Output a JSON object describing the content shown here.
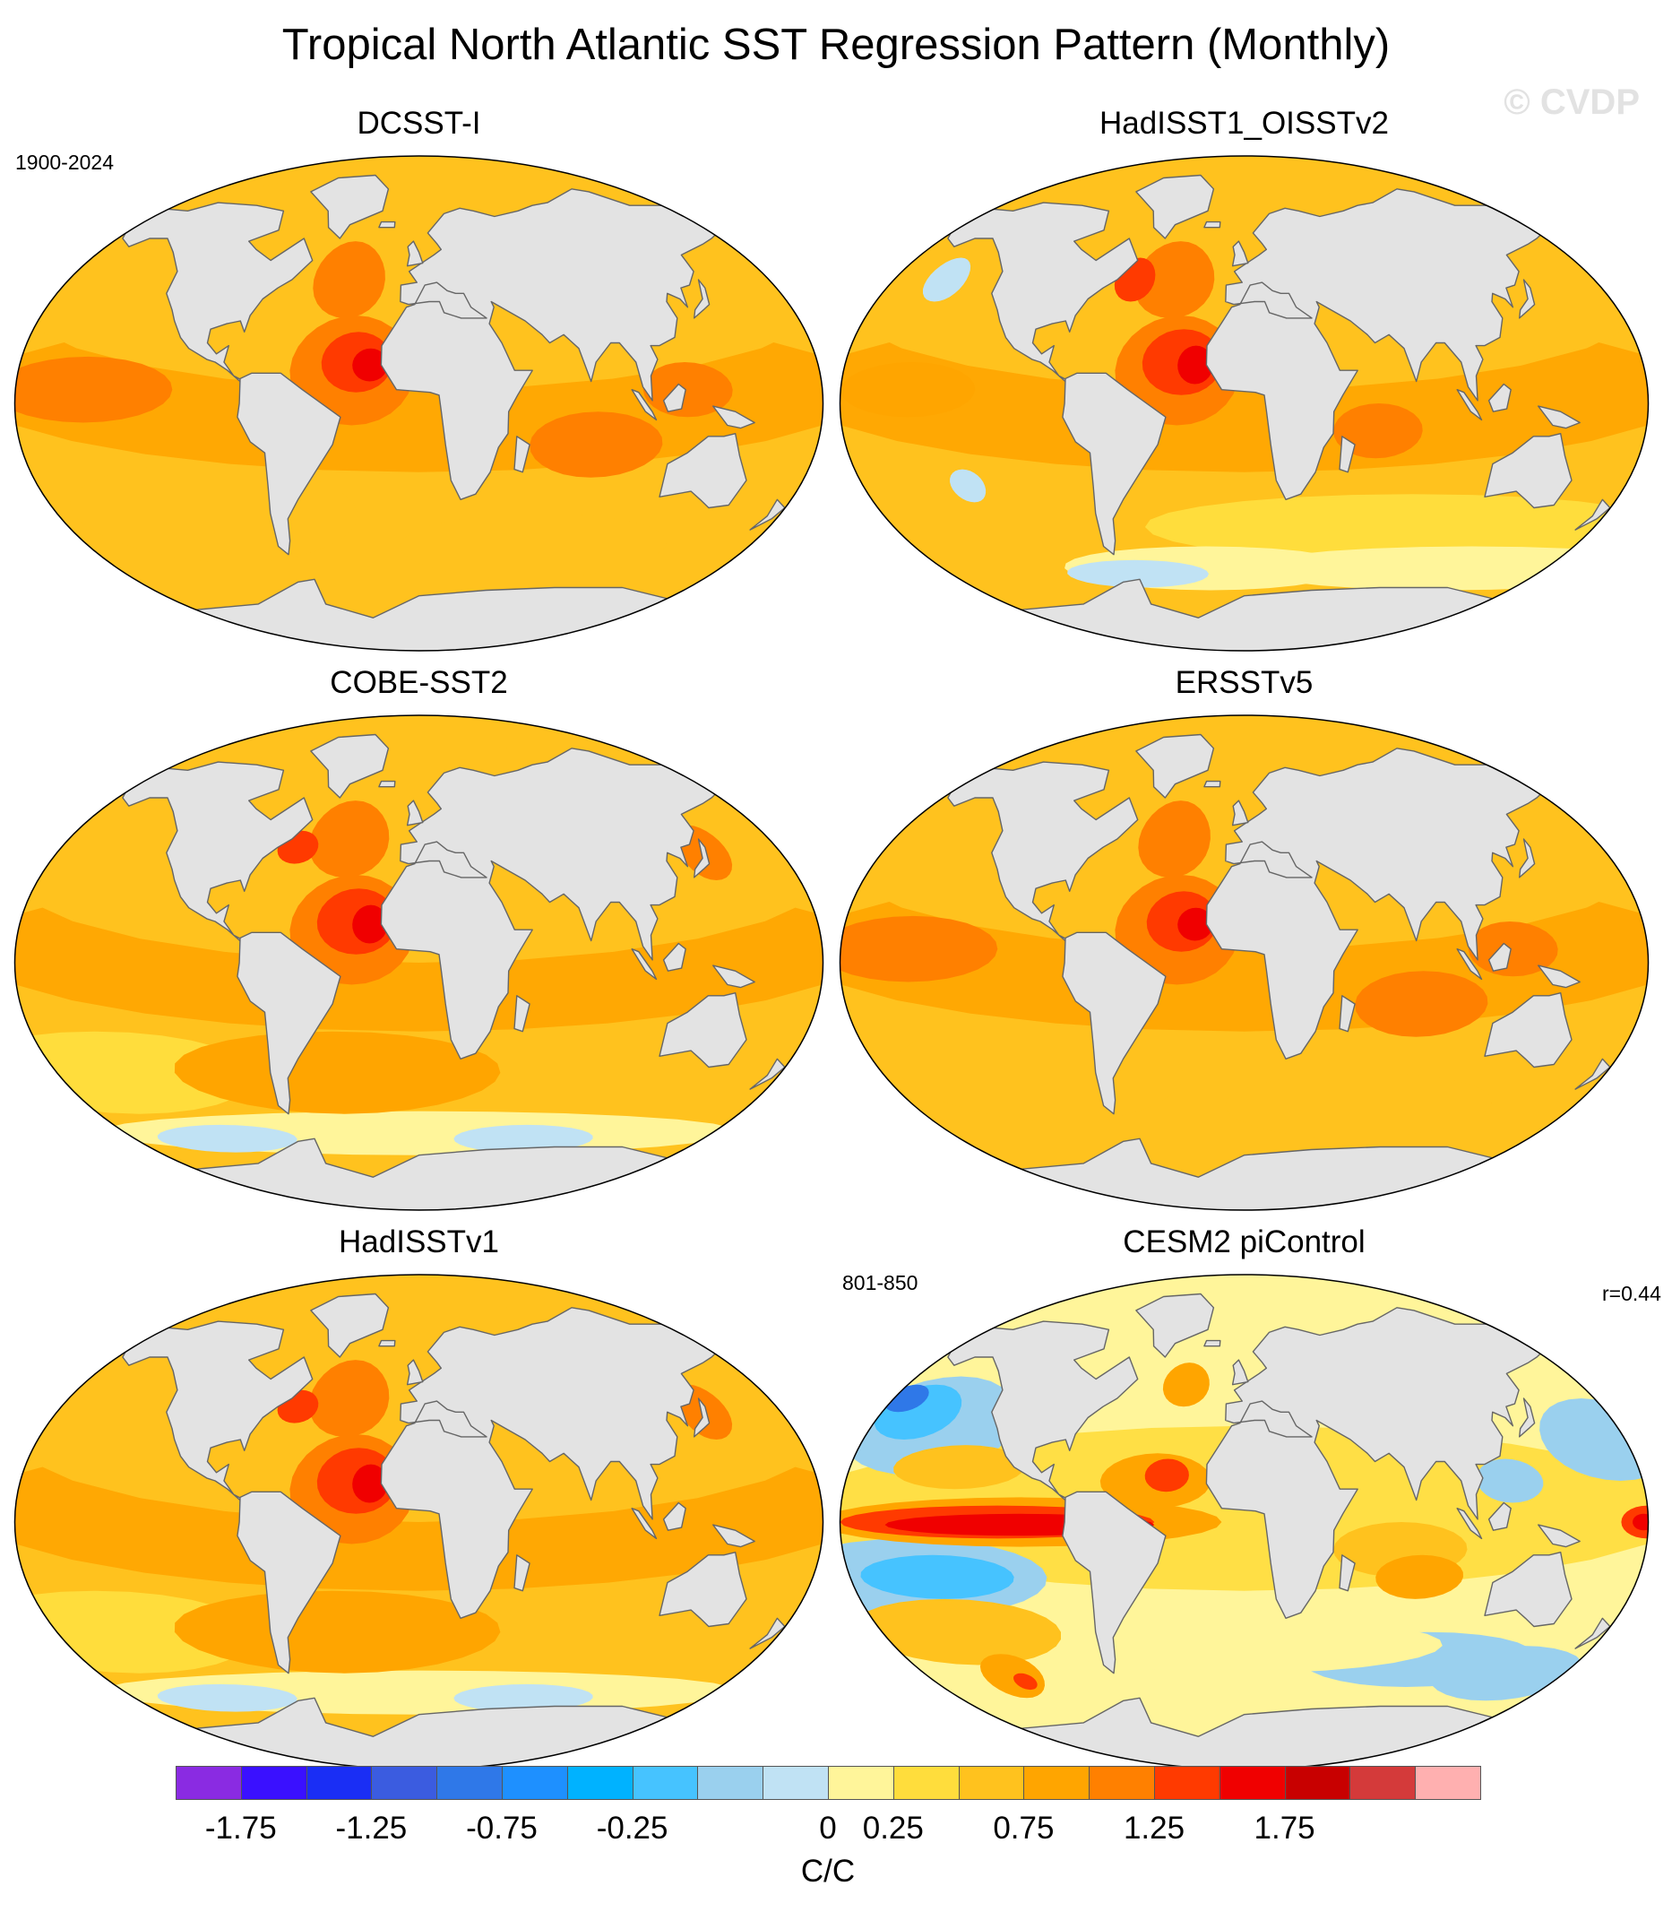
{
  "figure": {
    "title": "Tropical North Atlantic SST Regression Pattern (Monthly)",
    "watermark": "© CVDP"
  },
  "panels": [
    {
      "title": "DCSST-I",
      "note_left": "1900-2024",
      "note_right": "",
      "pattern": "warm"
    },
    {
      "title": "HadISST1_OISSTv2",
      "note_left": "",
      "note_right": "",
      "pattern": "warm_variable"
    },
    {
      "title": "COBE-SST2",
      "note_left": "",
      "note_right": "",
      "pattern": "warm_cool_south"
    },
    {
      "title": "ERSSTv5",
      "note_left": "",
      "note_right": "",
      "pattern": "warm"
    },
    {
      "title": "HadISSTv1",
      "note_left": "",
      "note_right": "",
      "pattern": "warm_cool_south"
    },
    {
      "title": "CESM2 piControl",
      "note_left": "801-850",
      "note_right": "r=0.44",
      "pattern": "enso_mixed"
    }
  ],
  "colorbar": {
    "colors": [
      "#8a2be2",
      "#3a10ff",
      "#1a2ef5",
      "#3b5ce0",
      "#2f78e8",
      "#1e90ff",
      "#00b2ff",
      "#46c3ff",
      "#9ad0ee",
      "#c0e2f4",
      "#fff59a",
      "#ffdd3c",
      "#ffc21e",
      "#ffa500",
      "#ff8000",
      "#ff3a00",
      "#f00000",
      "#c80000",
      "#d43a3a",
      "#ffb0b0"
    ],
    "labels": [
      "-1.75",
      "-1.25",
      "-0.75",
      "-0.25",
      "0",
      "0.25",
      "0.75",
      "1.25",
      "1.75"
    ],
    "label_boundaries": [
      1,
      3,
      5,
      7,
      10,
      11,
      13,
      15,
      17
    ],
    "units": "C/C"
  },
  "land_color": "#e3e3e3",
  "coast_color": "#666666"
}
